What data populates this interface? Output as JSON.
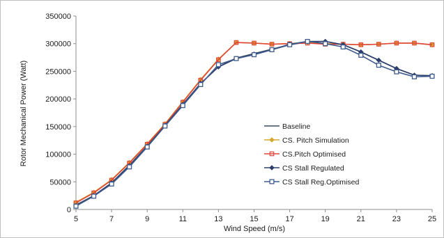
{
  "chart_data": {
    "type": "line",
    "title": "",
    "xlabel": "Wind Speed (m/s)",
    "ylabel": "Rotor Mechanical Power (Watt)",
    "xlim": [
      5,
      25
    ],
    "ylim": [
      0,
      350000
    ],
    "x_ticks": [
      "5",
      "7",
      "9",
      "11",
      "13",
      "15",
      "17",
      "19",
      "21",
      "23",
      "25"
    ],
    "y_ticks": [
      "0",
      "50000",
      "100000",
      "150000",
      "200000",
      "250000",
      "300000",
      "350000"
    ],
    "grid": false,
    "legend_position": "right",
    "x": [
      5,
      6,
      7,
      8,
      9,
      10,
      11,
      12,
      13,
      14,
      15,
      16,
      17,
      18,
      19,
      20,
      21,
      22,
      23,
      24,
      25
    ],
    "series": [
      {
        "name": "Baseline",
        "color": "#3b4a5f",
        "marker": "none",
        "values": [
          8000,
          25000,
          48000,
          80000,
          115000,
          152000,
          190000,
          228000,
          258000,
          274000,
          282000,
          290000,
          298000,
          303000,
          304000,
          298000,
          285000,
          270000,
          255000,
          243000,
          242000
        ]
      },
      {
        "name": "CS. Pitch Simulation",
        "color": "#d4a82a",
        "marker": "diamond",
        "values": [
          13000,
          31000,
          54000,
          85000,
          119000,
          155000,
          195000,
          235000,
          272000,
          302000,
          301000,
          299000,
          300000,
          302000,
          300000,
          299000,
          298000,
          299000,
          301000,
          301000,
          298000
        ]
      },
      {
        "name": "CS.Pitch Optimised",
        "color": "#e0453a",
        "marker": "square",
        "values": [
          12000,
          30000,
          53000,
          84000,
          118000,
          154000,
          194000,
          234000,
          271000,
          302000,
          301000,
          299000,
          300000,
          301000,
          299000,
          299000,
          298000,
          299000,
          301000,
          301000,
          298000
        ]
      },
      {
        "name": "CS Stall Regulated",
        "color": "#2c3e6b",
        "marker": "diamond",
        "values": [
          7000,
          25000,
          48000,
          79000,
          114000,
          152000,
          190000,
          228000,
          258000,
          273000,
          281000,
          289000,
          299000,
          304000,
          304000,
          298000,
          285000,
          270000,
          255000,
          243000,
          242000
        ]
      },
      {
        "name": "CS Stall Reg.Optimised",
        "color": "#3d5a8c",
        "marker": "square-open",
        "values": [
          6000,
          24000,
          46000,
          77000,
          113000,
          151000,
          188000,
          226000,
          262000,
          273000,
          280000,
          289000,
          298000,
          304000,
          300000,
          294000,
          279000,
          261000,
          249000,
          240000,
          241000
        ]
      }
    ]
  }
}
